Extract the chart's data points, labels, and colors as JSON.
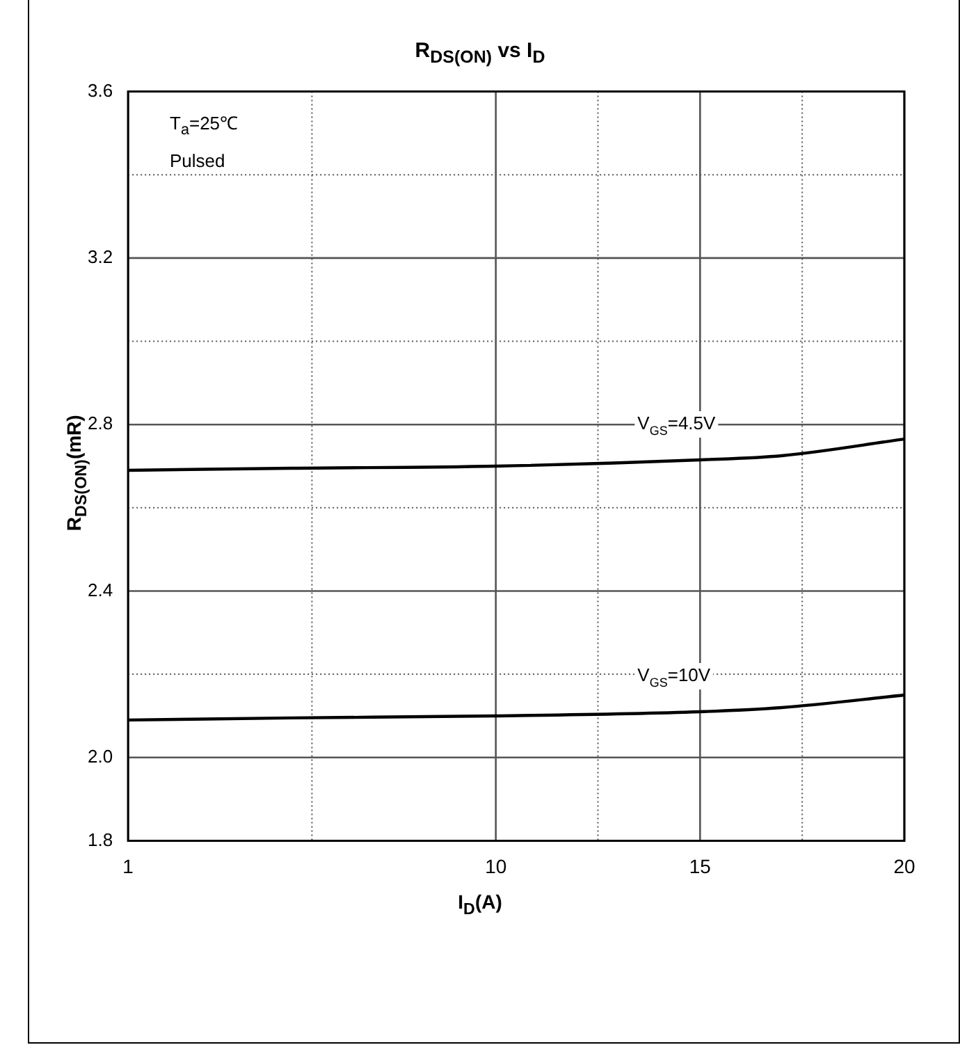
{
  "chart_data": {
    "type": "line",
    "title": "R$_{DS(ON)}$ vs I$_{D}$",
    "xlabel": "I$_{D}$(A)",
    "ylabel": "R$_{DS(ON)}$(mR)",
    "series": [
      {
        "name": "V$_{GS}$=4.5V",
        "color": "#000000",
        "x": [
          1,
          5,
          10,
          15,
          17,
          20
        ],
        "values": [
          2.69,
          2.695,
          2.7,
          2.715,
          2.725,
          2.765
        ]
      },
      {
        "name": "V$_{GS}$=10V",
        "color": "#000000",
        "x": [
          1,
          5,
          10,
          15,
          17,
          20
        ],
        "values": [
          2.09,
          2.095,
          2.1,
          2.11,
          2.12,
          2.15
        ]
      }
    ],
    "xlim": [
      1,
      20
    ],
    "xticks": [
      1,
      {
        "value": 5.5,
        "label": null
      },
      10,
      {
        "value": 12.5,
        "label": null
      },
      15,
      {
        "value": 17.5,
        "label": null
      },
      20
    ],
    "ylim": [
      1.8,
      3.6
    ],
    "yticks": [
      1.8,
      {
        "value": 2,
        "label": "2.0"
      },
      {
        "value": 2.2,
        "label": null
      },
      2.4,
      {
        "value": 2.6,
        "label": null
      },
      2.8,
      {
        "value": 3,
        "label": null
      },
      3.2,
      {
        "value": 3.4,
        "label": null
      },
      3.6
    ],
    "annotations": [
      "T$_{a}$=25℃",
      "Pulsed"
    ],
    "grid": true,
    "legend": false,
    "marker": "none",
    "line_style": "solid"
  }
}
